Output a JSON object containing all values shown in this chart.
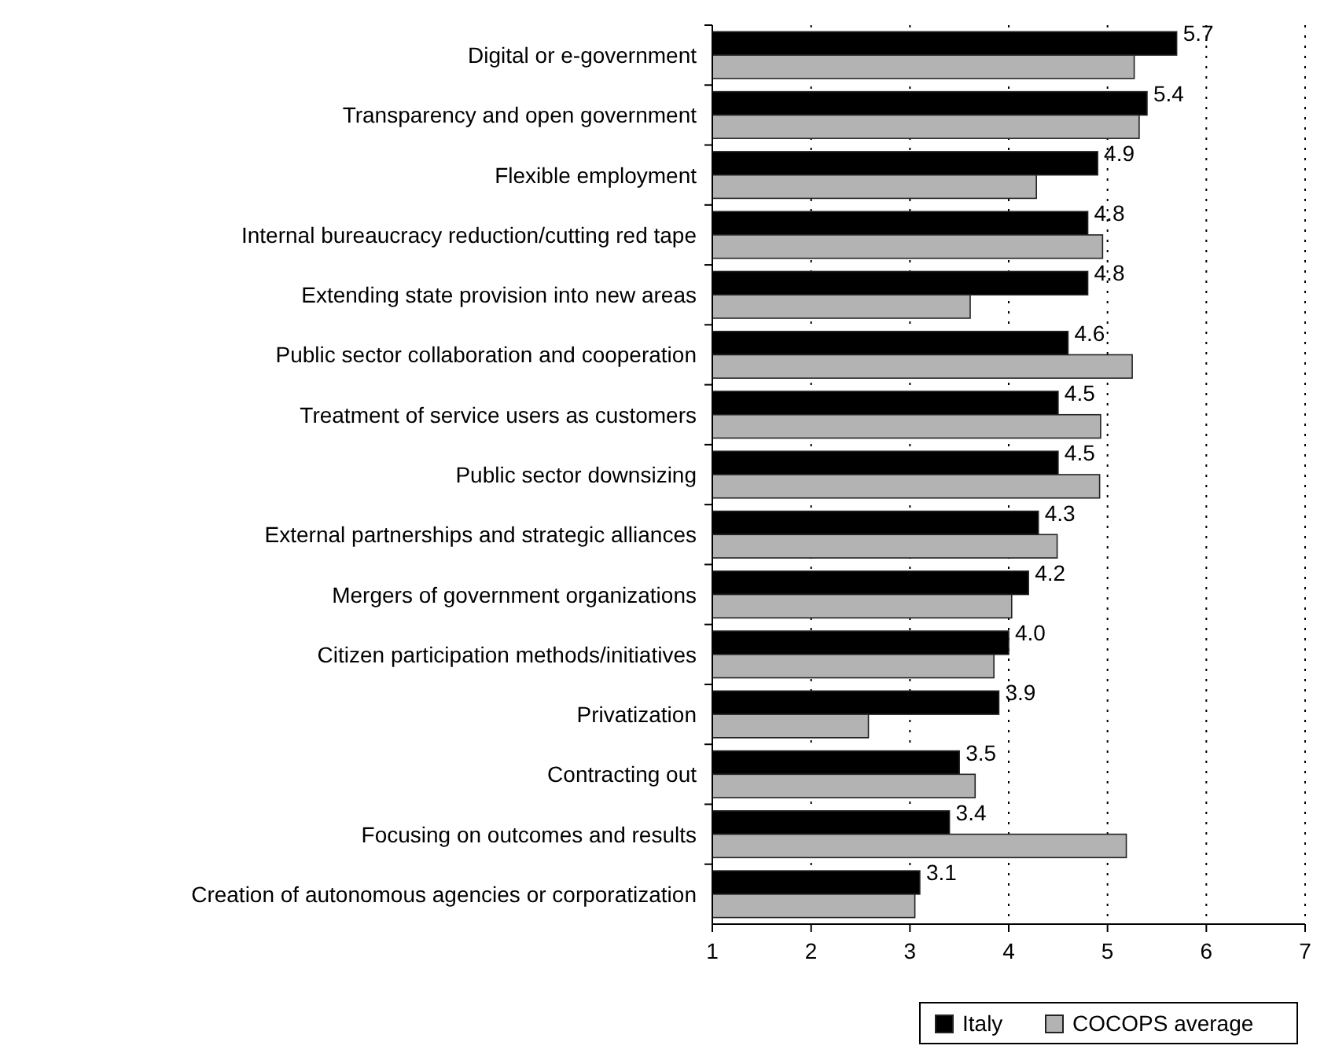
{
  "chart_data": {
    "type": "bar",
    "orientation": "horizontal",
    "categories": [
      "Digital or e-government",
      "Transparency and open government",
      "Flexible employment",
      "Internal bureaucracy reduction/cutting red tape",
      "Extending state provision into new areas",
      "Public sector collaboration and cooperation",
      "Treatment of service users as customers",
      "Public sector downsizing",
      "External partnerships and strategic alliances",
      "Mergers of government organizations",
      "Citizen participation methods/initiatives",
      "Privatization",
      "Contracting out",
      "Focusing on outcomes and results",
      "Creation of autonomous agencies or corporatization"
    ],
    "series": [
      {
        "name": "Italy",
        "color": "#000000",
        "values": [
          5.7,
          5.4,
          4.9,
          4.8,
          4.8,
          4.6,
          4.5,
          4.5,
          4.3,
          4.2,
          4.0,
          3.9,
          3.5,
          3.4,
          3.1
        ],
        "value_labels": [
          "5.7",
          "5.4",
          "4.9",
          "4.8",
          "4.8",
          "4.6",
          "4.5",
          "4.5",
          "4.3",
          "4.2",
          "4.0",
          "3.9",
          "3.5",
          "3.4",
          "3.1"
        ]
      },
      {
        "name": "COCOPS average",
        "color": "#b3b3b3",
        "values": [
          5.27,
          5.32,
          4.28,
          4.95,
          3.61,
          5.25,
          4.93,
          4.92,
          4.49,
          4.03,
          3.85,
          2.58,
          3.66,
          5.19,
          3.05
        ]
      }
    ],
    "xlim": [
      1,
      7
    ],
    "xticks": [
      1,
      2,
      3,
      4,
      5,
      6,
      7
    ],
    "grid": "x",
    "legend": "bottom"
  }
}
